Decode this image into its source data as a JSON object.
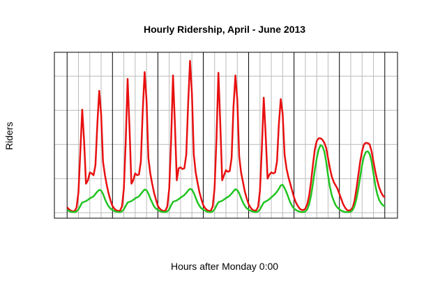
{
  "chart_data": {
    "type": "line",
    "title": "Hourly Ridership, April - June 2013",
    "xlabel": "Hours after Monday 0:00",
    "ylabel": "Riders",
    "x": [
      0,
      1,
      2,
      3,
      4,
      5,
      6,
      7,
      8,
      9,
      10,
      11,
      12,
      13,
      14,
      15,
      16,
      17,
      18,
      19,
      20,
      21,
      22,
      23,
      24,
      25,
      26,
      27,
      28,
      29,
      30,
      31,
      32,
      33,
      34,
      35,
      36,
      37,
      38,
      39,
      40,
      41,
      42,
      43,
      44,
      45,
      46,
      47,
      48,
      49,
      50,
      51,
      52,
      53,
      54,
      55,
      56,
      57,
      58,
      59,
      60,
      61,
      62,
      63,
      64,
      65,
      66,
      67,
      68,
      69,
      70,
      71,
      72,
      73,
      74,
      75,
      76,
      77,
      78,
      79,
      80,
      81,
      82,
      83,
      84,
      85,
      86,
      87,
      88,
      89,
      90,
      91,
      92,
      93,
      94,
      95,
      96,
      97,
      98,
      99,
      100,
      101,
      102,
      103,
      104,
      105,
      106,
      107,
      108,
      109,
      110,
      111,
      112,
      113,
      114,
      115,
      116,
      117,
      118,
      119,
      120,
      121,
      122,
      123,
      124,
      125,
      126,
      127,
      128,
      129,
      130,
      131,
      132,
      133,
      134,
      135,
      136,
      137,
      138,
      139,
      140,
      141,
      142,
      143,
      144,
      145,
      146,
      147,
      148,
      149,
      150,
      151,
      152,
      153,
      154,
      155,
      156,
      157,
      158,
      159,
      160,
      161,
      162,
      163,
      164,
      165,
      166,
      167,
      168
    ],
    "series": [
      {
        "color": "#e81010",
        "values": [
          16,
          10,
          6,
          4,
          5,
          15,
          60,
          180,
          302,
          210,
          85,
          95,
          118,
          115,
          110,
          140,
          260,
          357,
          290,
          150,
          110,
          80,
          55,
          35,
          20,
          12,
          7,
          5,
          6,
          18,
          70,
          210,
          392,
          250,
          85,
          95,
          115,
          110,
          112,
          150,
          300,
          412,
          330,
          160,
          115,
          85,
          58,
          38,
          20,
          12,
          7,
          5,
          6,
          18,
          72,
          215,
          402,
          260,
          95,
          130,
          133,
          128,
          130,
          170,
          320,
          445,
          350,
          170,
          118,
          88,
          60,
          40,
          22,
          13,
          8,
          5,
          6,
          18,
          72,
          215,
          410,
          260,
          95,
          110,
          125,
          120,
          122,
          160,
          310,
          402,
          330,
          165,
          118,
          90,
          62,
          42,
          25,
          15,
          9,
          6,
          7,
          17,
          65,
          190,
          337,
          230,
          100,
          112,
          118,
          115,
          118,
          150,
          260,
          333,
          290,
          170,
          130,
          105,
          85,
          65,
          45,
          30,
          20,
          12,
          8,
          8,
          12,
          25,
          50,
          90,
          140,
          185,
          210,
          218,
          218,
          214,
          205,
          190,
          160,
          130,
          105,
          90,
          80,
          70,
          55,
          40,
          25,
          15,
          8,
          6,
          8,
          15,
          35,
          70,
          110,
          150,
          180,
          200,
          205,
          204,
          200,
          180,
          150,
          120,
          95,
          75,
          60,
          50,
          45
        ]
      },
      {
        "color": "#22c422",
        "values": [
          8,
          5,
          3,
          2,
          2,
          4,
          10,
          20,
          30,
          32,
          34,
          38,
          42,
          45,
          48,
          55,
          62,
          67,
          65,
          55,
          40,
          28,
          18,
          12,
          8,
          5,
          3,
          2,
          2,
          4,
          10,
          20,
          30,
          32,
          34,
          38,
          42,
          45,
          48,
          55,
          62,
          68,
          66,
          56,
          42,
          30,
          18,
          12,
          8,
          5,
          3,
          2,
          2,
          4,
          10,
          22,
          32,
          34,
          36,
          40,
          44,
          48,
          52,
          58,
          65,
          70,
          68,
          58,
          44,
          30,
          20,
          13,
          9,
          6,
          3,
          2,
          2,
          4,
          10,
          21,
          31,
          33,
          35,
          39,
          43,
          46,
          50,
          56,
          63,
          69,
          66,
          57,
          43,
          30,
          20,
          13,
          9,
          6,
          4,
          2,
          2,
          4,
          10,
          20,
          30,
          33,
          36,
          40,
          45,
          50,
          55,
          62,
          70,
          80,
          82,
          72,
          60,
          45,
          30,
          20,
          12,
          8,
          5,
          3,
          2,
          2,
          4,
          10,
          25,
          50,
          85,
          125,
          160,
          185,
          198,
          195,
          180,
          150,
          110,
          75,
          50,
          35,
          22,
          15,
          10,
          6,
          4,
          2,
          2,
          2,
          3,
          8,
          20,
          40,
          70,
          105,
          140,
          165,
          178,
          180,
          172,
          150,
          115,
          80,
          55,
          38,
          28,
          22,
          18
        ]
      }
    ],
    "xlim": [
      -6.72,
      174.72
    ],
    "ylim": [
      -16,
      470
    ],
    "xticks": [
      0,
      6,
      12,
      18,
      24,
      30,
      36,
      42,
      48,
      54,
      60,
      66,
      72,
      78,
      84,
      90,
      96,
      102,
      108,
      114,
      120,
      126,
      132,
      138,
      144,
      150,
      156,
      162,
      168
    ],
    "yticks": [
      0,
      100,
      200,
      300,
      400
    ],
    "grid": true
  }
}
